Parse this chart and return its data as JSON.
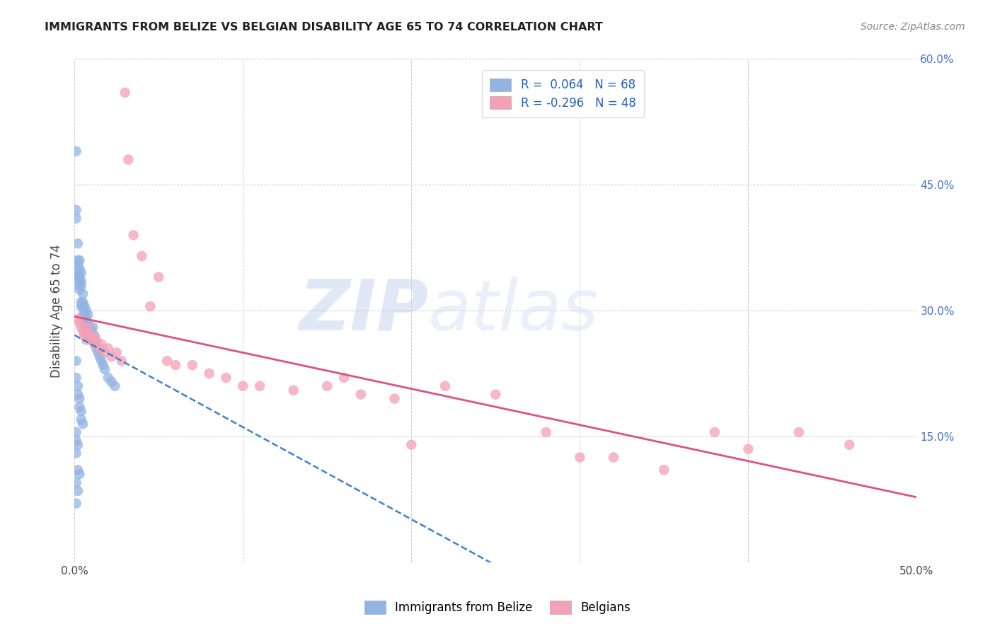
{
  "title": "IMMIGRANTS FROM BELIZE VS BELGIAN DISABILITY AGE 65 TO 74 CORRELATION CHART",
  "source": "Source: ZipAtlas.com",
  "ylabel": "Disability Age 65 to 74",
  "xmin": 0.0,
  "xmax": 0.5,
  "ymin": 0.0,
  "ymax": 0.6,
  "xticks": [
    0.0,
    0.1,
    0.2,
    0.3,
    0.4,
    0.5
  ],
  "yticks": [
    0.0,
    0.15,
    0.3,
    0.45,
    0.6
  ],
  "xtick_labels": [
    "0.0%",
    "",
    "",
    "",
    "",
    "50.0%"
  ],
  "ytick_labels_right": [
    "",
    "15.0%",
    "30.0%",
    "45.0%",
    "60.0%"
  ],
  "belize_color": "#92b4e3",
  "belgian_color": "#f4a0b5",
  "belize_line_color": "#4080d0",
  "belgian_line_color": "#e05080",
  "belize_R": 0.064,
  "belize_N": 68,
  "belgian_R": -0.296,
  "belgian_N": 48,
  "watermark_zip": "ZIP",
  "watermark_atlas": "atlas",
  "belize_x": [
    0.001,
    0.001,
    0.001,
    0.002,
    0.002,
    0.002,
    0.002,
    0.002,
    0.003,
    0.003,
    0.003,
    0.003,
    0.003,
    0.003,
    0.004,
    0.004,
    0.004,
    0.004,
    0.004,
    0.005,
    0.005,
    0.005,
    0.005,
    0.006,
    0.006,
    0.006,
    0.007,
    0.007,
    0.007,
    0.007,
    0.008,
    0.008,
    0.008,
    0.009,
    0.009,
    0.01,
    0.01,
    0.011,
    0.011,
    0.012,
    0.012,
    0.013,
    0.014,
    0.015,
    0.016,
    0.017,
    0.018,
    0.02,
    0.022,
    0.024,
    0.001,
    0.001,
    0.002,
    0.002,
    0.003,
    0.003,
    0.004,
    0.004,
    0.005,
    0.001,
    0.001,
    0.002,
    0.001,
    0.002,
    0.003,
    0.001,
    0.002,
    0.001
  ],
  "belize_y": [
    0.49,
    0.42,
    0.41,
    0.38,
    0.36,
    0.355,
    0.345,
    0.34,
    0.36,
    0.35,
    0.34,
    0.335,
    0.33,
    0.325,
    0.345,
    0.335,
    0.33,
    0.31,
    0.305,
    0.32,
    0.31,
    0.305,
    0.295,
    0.305,
    0.295,
    0.285,
    0.3,
    0.29,
    0.285,
    0.275,
    0.295,
    0.285,
    0.275,
    0.28,
    0.27,
    0.275,
    0.265,
    0.28,
    0.265,
    0.27,
    0.26,
    0.255,
    0.25,
    0.245,
    0.24,
    0.235,
    0.23,
    0.22,
    0.215,
    0.21,
    0.24,
    0.22,
    0.21,
    0.2,
    0.195,
    0.185,
    0.18,
    0.17,
    0.165,
    0.155,
    0.145,
    0.14,
    0.13,
    0.11,
    0.105,
    0.095,
    0.085,
    0.07
  ],
  "belgian_x": [
    0.002,
    0.003,
    0.004,
    0.005,
    0.006,
    0.007,
    0.008,
    0.009,
    0.01,
    0.011,
    0.012,
    0.013,
    0.015,
    0.016,
    0.018,
    0.02,
    0.022,
    0.025,
    0.028,
    0.03,
    0.032,
    0.035,
    0.04,
    0.045,
    0.05,
    0.055,
    0.06,
    0.07,
    0.08,
    0.09,
    0.1,
    0.11,
    0.13,
    0.15,
    0.16,
    0.17,
    0.19,
    0.2,
    0.22,
    0.25,
    0.28,
    0.3,
    0.32,
    0.35,
    0.38,
    0.4,
    0.43,
    0.46
  ],
  "belgian_y": [
    0.29,
    0.285,
    0.28,
    0.275,
    0.27,
    0.265,
    0.28,
    0.27,
    0.265,
    0.27,
    0.26,
    0.265,
    0.255,
    0.26,
    0.25,
    0.255,
    0.245,
    0.25,
    0.24,
    0.56,
    0.48,
    0.39,
    0.365,
    0.305,
    0.34,
    0.24,
    0.235,
    0.235,
    0.225,
    0.22,
    0.21,
    0.21,
    0.205,
    0.21,
    0.22,
    0.2,
    0.195,
    0.14,
    0.21,
    0.2,
    0.155,
    0.125,
    0.125,
    0.11,
    0.155,
    0.135,
    0.155,
    0.14
  ]
}
